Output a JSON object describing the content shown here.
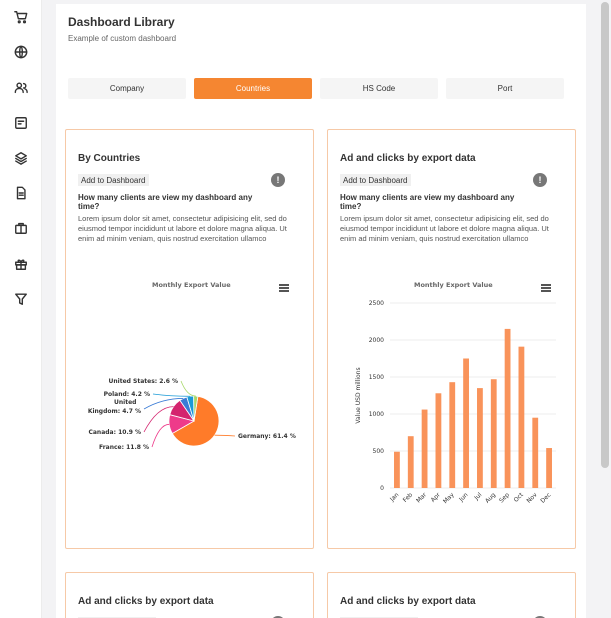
{
  "sidebar": {
    "icons": [
      "cart-icon",
      "globe-icon",
      "users-icon",
      "dashboard-icon",
      "layers-icon",
      "document-icon",
      "briefcase-icon",
      "gift-icon",
      "filter-icon"
    ]
  },
  "header": {
    "title": "Dashboard Library",
    "subtitle": "Example of custom dashboard"
  },
  "tabs": [
    {
      "label": "Company",
      "active": false
    },
    {
      "label": "Countries",
      "active": true
    },
    {
      "label": "HS Code",
      "active": false
    },
    {
      "label": "Port",
      "active": false
    }
  ],
  "colors": {
    "accent": "#f58631",
    "card_border": "#f6c9a7"
  },
  "cards": [
    {
      "title": "By Countries",
      "add_label": "Add to Dashboard",
      "info_icon": "!",
      "question": "How many clients are view my dashboard any time?",
      "description": "Lorem ipsum dolor sit amet, consectetur adipisicing elit, sed do eiusmod tempor incididunt ut labore et dolore magna aliqua. Ut enim ad minim veniam, quis nostrud exercitation ullamco",
      "chart_title": "Monthly Export Value"
    },
    {
      "title": "Ad and clicks by export data",
      "add_label": "Add to Dashboard",
      "info_icon": "!",
      "question": "How many clients are view my dashboard any time?",
      "description": "Lorem ipsum dolor sit amet, consectetur adipisicing elit, sed do eiusmod tempor incididunt ut labore et dolore magna aliqua. Ut enim ad minim veniam, quis nostrud exercitation ullamco",
      "chart_title": "Monthly Export Value"
    },
    {
      "title": "Ad and clicks by export data"
    },
    {
      "title": "Ad and clicks by export data"
    }
  ],
  "chart_data": [
    {
      "type": "pie",
      "title": "Monthly Export Value",
      "slices": [
        {
          "name": "Germany",
          "value": 61.4,
          "color": "#ff7b29"
        },
        {
          "name": "France",
          "value": 11.8,
          "color": "#ee3a8a"
        },
        {
          "name": "Canada",
          "value": 10.9,
          "color": "#d4236e"
        },
        {
          "name": "United Kingdom",
          "value": 4.7,
          "color": "#3a7bd5"
        },
        {
          "name": "Poland",
          "value": 4.2,
          "color": "#1a9ad6"
        },
        {
          "name": "United States",
          "value": 2.6,
          "color": "#a8d86b"
        }
      ],
      "labels": [
        "Germany: 61.4 %",
        "France: 11.8 %",
        "Canada: 10.9 %",
        "United Kingdom: 4.7 %",
        "Poland: 4.2 %",
        "United States: 2.6 %"
      ]
    },
    {
      "type": "bar",
      "title": "Monthly Export Value",
      "categories": [
        "Jan",
        "Feb",
        "Mar",
        "Apr",
        "May",
        "Jun",
        "Jul",
        "Aug",
        "Sep",
        "Oct",
        "Nov",
        "Dec"
      ],
      "values": [
        490,
        700,
        1060,
        1280,
        1430,
        1750,
        1350,
        1470,
        2150,
        1910,
        950,
        540
      ],
      "ylabel": "Value USD millions",
      "ylim": [
        0,
        2500
      ],
      "yticks": [
        "0",
        "500",
        "1000",
        "1500",
        "2000",
        "2500"
      ],
      "bar_color": "#f9935a",
      "grid": true
    }
  ]
}
